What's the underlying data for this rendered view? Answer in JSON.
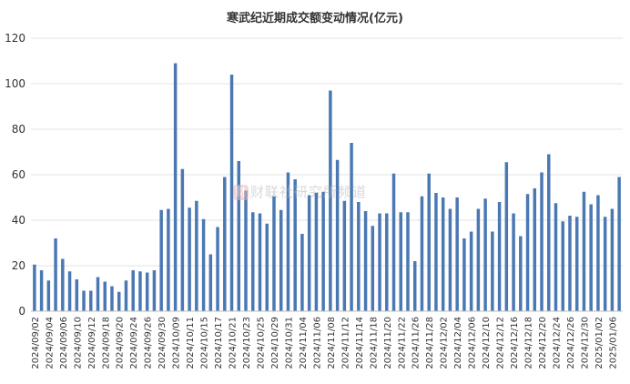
{
  "chart_data": {
    "type": "bar",
    "title": "寒武纪近期成交额变动情况(亿元)",
    "xlabel": "",
    "ylabel": "",
    "ylim": [
      0,
      120
    ],
    "yticks": [
      0,
      20,
      40,
      60,
      80,
      100,
      120
    ],
    "grid": true,
    "legend": "none",
    "bar_color": "#4a78b3",
    "categories": [
      "2024/09/02",
      "2024/09/03",
      "2024/09/04",
      "2024/09/05",
      "2024/09/06",
      "2024/09/09",
      "2024/09/10",
      "2024/09/11",
      "2024/09/12",
      "2024/09/13",
      "2024/09/18",
      "2024/09/19",
      "2024/09/20",
      "2024/09/23",
      "2024/09/24",
      "2024/09/25",
      "2024/09/26",
      "2024/09/27",
      "2024/09/30",
      "2024/10/08",
      "2024/10/09",
      "2024/10/10",
      "2024/10/11",
      "2024/10/14",
      "2024/10/15",
      "2024/10/16",
      "2024/10/17",
      "2024/10/18",
      "2024/10/21",
      "2024/10/22",
      "2024/10/23",
      "2024/10/24",
      "2024/10/25",
      "2024/10/28",
      "2024/10/29",
      "2024/10/30",
      "2024/10/31",
      "2024/11/01",
      "2024/11/04",
      "2024/11/05",
      "2024/11/06",
      "2024/11/07",
      "2024/11/08",
      "2024/11/11",
      "2024/11/12",
      "2024/11/13",
      "2024/11/14",
      "2024/11/15",
      "2024/11/18",
      "2024/11/19",
      "2024/11/20",
      "2024/11/21",
      "2024/11/22",
      "2024/11/25",
      "2024/11/26",
      "2024/11/27",
      "2024/11/28",
      "2024/11/29",
      "2024/12/02",
      "2024/12/03",
      "2024/12/04",
      "2024/12/05",
      "2024/12/06",
      "2024/12/09",
      "2024/12/10",
      "2024/12/11",
      "2024/12/12",
      "2024/12/13",
      "2024/12/16",
      "2024/12/17",
      "2024/12/18",
      "2024/12/19",
      "2024/12/20",
      "2024/12/23",
      "2024/12/24",
      "2024/12/25",
      "2024/12/26",
      "2024/12/27",
      "2024/12/30",
      "2024/12/31",
      "2025/01/02",
      "2025/01/03",
      "2025/01/06",
      "2025/01/07"
    ],
    "values": [
      20.5,
      18,
      13.5,
      32,
      23,
      17.5,
      14,
      9,
      9,
      15,
      13,
      11,
      8.5,
      13.5,
      18,
      17.5,
      17,
      18,
      44.5,
      45,
      109,
      62.5,
      45.5,
      48.5,
      40.5,
      25,
      37,
      59,
      104,
      66,
      53,
      43.5,
      43,
      38.5,
      50.5,
      44.5,
      61,
      58,
      34,
      51,
      52,
      52.5,
      97,
      66.5,
      48.5,
      74,
      48,
      44,
      37.5,
      43,
      43,
      60.5,
      43.5,
      43.5,
      22,
      50.5,
      60.5,
      52,
      50,
      45,
      50,
      32,
      35,
      45,
      49.5,
      35,
      48,
      65.5,
      43,
      33,
      51.5,
      54,
      61,
      69,
      47.5,
      39.5,
      42,
      41.5,
      52.5,
      47,
      51,
      41.5,
      45,
      59
    ],
    "x_tick_labels": [
      "2024/09/02",
      "2024/09/04",
      "2024/09/06",
      "2024/09/10",
      "2024/09/12",
      "2024/09/18",
      "2024/09/20",
      "2024/09/24",
      "2024/09/26",
      "2024/09/30",
      "2024/10/09",
      "2024/10/11",
      "2024/10/15",
      "2024/10/17",
      "2024/10/21",
      "2024/10/23",
      "2024/10/25",
      "2024/10/29",
      "2024/10/31",
      "2024/11/04",
      "2024/11/06",
      "2024/11/08",
      "2024/11/12",
      "2024/11/14",
      "2024/11/18",
      "2024/11/20",
      "2024/11/22",
      "2024/11/26",
      "2024/11/28",
      "2024/12/02",
      "2024/12/04",
      "2024/12/06",
      "2024/12/10",
      "2024/12/12",
      "2024/12/16",
      "2024/12/18",
      "2024/12/20",
      "2024/12/24",
      "2024/12/26",
      "2024/12/30",
      "2025/01/02",
      "2025/01/06"
    ]
  },
  "watermark": {
    "logo": "财",
    "text": "财联社研究所频道"
  }
}
